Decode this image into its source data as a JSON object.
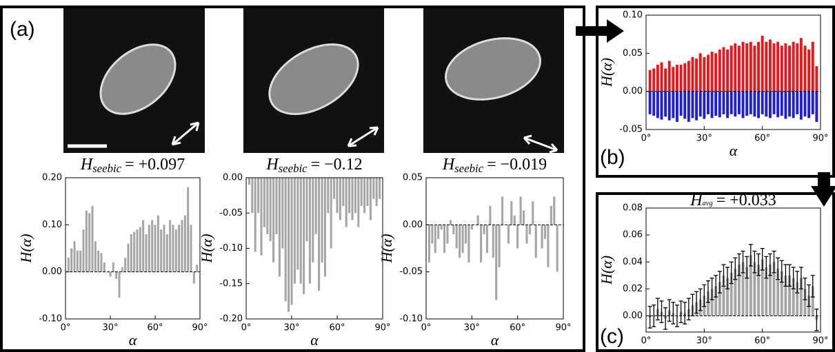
{
  "chart_data": [
    {
      "type": "bar",
      "panel_label": "(a)",
      "title_symbol": "H",
      "title_subscript": "seebic",
      "title_text": "= +0.097",
      "ylabel": "H(α)",
      "xlabel": "α",
      "x": [
        2,
        4,
        6,
        8,
        10,
        12,
        14,
        16,
        18,
        20,
        22,
        24,
        26,
        28,
        30,
        32,
        34,
        36,
        38,
        40,
        42,
        44,
        46,
        48,
        50,
        52,
        54,
        56,
        58,
        60,
        62,
        64,
        66,
        68,
        70,
        72,
        74,
        76,
        78,
        80,
        82,
        84,
        86,
        88
      ],
      "values": [
        0.03,
        0.05,
        0.065,
        0.045,
        0.045,
        0.09,
        0.13,
        0.125,
        0.14,
        0.065,
        0.045,
        0.04,
        0.02,
        0.0,
        -0.01,
        0.02,
        -0.015,
        -0.055,
        0.01,
        0.03,
        0.06,
        0.08,
        0.085,
        0.09,
        0.095,
        0.11,
        0.08,
        0.1,
        0.11,
        0.1,
        0.12,
        0.09,
        0.1,
        0.08,
        0.11,
        0.1,
        0.09,
        0.1,
        0.11,
        0.12,
        0.18,
        0.1,
        -0.025,
        0.015
      ],
      "color": "#a6a6a6",
      "xlim": [
        0,
        90
      ],
      "xticks": [
        {
          "value": 0,
          "label": "0°"
        },
        {
          "value": 30,
          "label": "30°"
        },
        {
          "value": 60,
          "label": "60°"
        },
        {
          "value": 90,
          "label": "90°"
        }
      ],
      "ylim": [
        -0.1,
        0.2
      ],
      "yticks": [
        {
          "value": -0.1,
          "label": "-0.10"
        },
        {
          "value": 0,
          "label": "0.00"
        },
        {
          "value": 0.1,
          "label": "0.10"
        },
        {
          "value": 0.2,
          "label": "0.20"
        }
      ]
    },
    {
      "type": "bar",
      "title_symbol": "H",
      "title_subscript": "seebic",
      "title_text": "= −0.12",
      "ylabel": "H(α)",
      "xlabel": "α",
      "x": [
        2,
        4,
        6,
        8,
        10,
        12,
        14,
        16,
        18,
        20,
        22,
        24,
        26,
        28,
        30,
        32,
        34,
        36,
        38,
        40,
        42,
        44,
        46,
        48,
        50,
        52,
        54,
        56,
        58,
        60,
        62,
        64,
        66,
        68,
        70,
        72,
        74,
        76,
        78,
        80,
        82,
        84,
        86,
        88
      ],
      "values": [
        -0.01,
        -0.05,
        -0.105,
        -0.05,
        -0.11,
        -0.07,
        -0.08,
        -0.09,
        -0.12,
        -0.08,
        -0.14,
        -0.1,
        -0.175,
        -0.19,
        -0.18,
        -0.15,
        -0.13,
        -0.15,
        -0.165,
        -0.09,
        -0.15,
        -0.12,
        -0.08,
        -0.16,
        -0.12,
        -0.14,
        -0.05,
        -0.1,
        -0.03,
        -0.05,
        -0.06,
        -0.04,
        -0.07,
        -0.05,
        -0.06,
        -0.05,
        -0.07,
        -0.04,
        -0.05,
        -0.04,
        -0.06,
        -0.03,
        -0.04,
        -0.03
      ],
      "color": "#a6a6a6",
      "xlim": [
        0,
        90
      ],
      "xticks": [
        {
          "value": 0,
          "label": "0°"
        },
        {
          "value": 30,
          "label": "30°"
        },
        {
          "value": 60,
          "label": "60°"
        },
        {
          "value": 90,
          "label": "90°"
        }
      ],
      "ylim": [
        -0.2,
        0
      ],
      "yticks": [
        {
          "value": -0.2,
          "label": "-0.20"
        },
        -0.15,
        {
          "value": -0.1,
          "label": "-0.10"
        },
        -0.05,
        {
          "value": 0,
          "label": "0.00"
        }
      ]
    },
    {
      "type": "bar",
      "title_symbol": "H",
      "title_subscript": "seebic",
      "title_text": "= −0.019",
      "ylabel": "H(α)",
      "xlabel": "α",
      "x": [
        2,
        4,
        6,
        8,
        10,
        12,
        14,
        16,
        18,
        20,
        22,
        24,
        26,
        28,
        30,
        32,
        34,
        36,
        38,
        40,
        42,
        44,
        46,
        48,
        50,
        52,
        54,
        56,
        58,
        60,
        62,
        64,
        66,
        68,
        70,
        72,
        74,
        76,
        78,
        80,
        82,
        84,
        86,
        88
      ],
      "values": [
        -0.04,
        -0.02,
        -0.03,
        -0.015,
        -0.005,
        -0.03,
        -0.02,
        0.005,
        -0.01,
        -0.025,
        -0.035,
        -0.03,
        -0.02,
        -0.04,
        -0.005,
        0.0,
        0.01,
        -0.04,
        -0.01,
        -0.03,
        0.02,
        -0.035,
        -0.08,
        -0.045,
        0.03,
        0.0,
        -0.02,
        0.025,
        0.01,
        -0.025,
        0.03,
        0.015,
        -0.02,
        -0.01,
        0.025,
        -0.035,
        0.0,
        -0.025,
        -0.015,
        -0.045,
        0.02,
        0.03,
        -0.05,
        0.0
      ],
      "color": "#a6a6a6",
      "xlim": [
        0,
        90
      ],
      "xticks": [
        {
          "value": 0,
          "label": "0°"
        },
        {
          "value": 30,
          "label": "30°"
        },
        {
          "value": 60,
          "label": "60°"
        },
        {
          "value": 90,
          "label": "90°"
        }
      ],
      "ylim": [
        -0.1,
        0.05
      ],
      "yticks": [
        {
          "value": -0.1,
          "label": "-0.10"
        },
        -0.05,
        {
          "value": 0,
          "label": "0.00"
        },
        0.05
      ]
    },
    {
      "type": "bar",
      "panel_label": "(b)",
      "ylabel": "H(α)",
      "xlabel": "α",
      "x": [
        2,
        4,
        6,
        8,
        10,
        12,
        14,
        16,
        18,
        20,
        22,
        24,
        26,
        28,
        30,
        32,
        34,
        36,
        38,
        40,
        42,
        44,
        46,
        48,
        50,
        52,
        54,
        56,
        58,
        60,
        62,
        64,
        66,
        68,
        70,
        72,
        74,
        76,
        78,
        80,
        82,
        84,
        86,
        88
      ],
      "series": [
        {
          "color": "#e8171c",
          "values": [
            0.028,
            0.03,
            0.035,
            0.038,
            0.03,
            0.04,
            0.032,
            0.035,
            0.035,
            0.037,
            0.04,
            0.045,
            0.043,
            0.05,
            0.045,
            0.048,
            0.052,
            0.05,
            0.055,
            0.058,
            0.055,
            0.06,
            0.063,
            0.06,
            0.065,
            0.063,
            0.065,
            0.06,
            0.065,
            0.073,
            0.065,
            0.068,
            0.063,
            0.065,
            0.06,
            0.063,
            0.06,
            0.065,
            0.063,
            0.07,
            0.06,
            0.055,
            0.065,
            0.033
          ]
        },
        {
          "color": "#1f1fd6",
          "values": [
            -0.03,
            -0.032,
            -0.035,
            -0.037,
            -0.033,
            -0.038,
            -0.035,
            -0.04,
            -0.032,
            -0.036,
            -0.04,
            -0.035,
            -0.038,
            -0.033,
            -0.036,
            -0.03,
            -0.035,
            -0.032,
            -0.034,
            -0.03,
            -0.035,
            -0.03,
            -0.033,
            -0.03,
            -0.035,
            -0.032,
            -0.03,
            -0.033,
            -0.035,
            -0.03,
            -0.033,
            -0.035,
            -0.03,
            -0.034,
            -0.032,
            -0.036,
            -0.033,
            -0.035,
            -0.03,
            -0.037,
            -0.033,
            -0.035,
            -0.03,
            -0.04
          ]
        }
      ],
      "xlim": [
        0,
        90
      ],
      "xticks": [
        {
          "value": 0,
          "label": "0°"
        },
        {
          "value": 30,
          "label": "30°"
        },
        {
          "value": 60,
          "label": "60°"
        },
        {
          "value": 90,
          "label": "90°"
        }
      ],
      "ylim": [
        -0.05,
        0.1
      ],
      "yticks": [
        -0.05,
        {
          "value": 0,
          "label": "0.00"
        },
        0.05,
        {
          "value": 0.1,
          "label": "0.10"
        }
      ]
    },
    {
      "type": "bar",
      "panel_label": "(c)",
      "title_symbol": "H",
      "title_subscript": "avg",
      "title_text": "= +0.033",
      "ylabel": "H(α)",
      "xlabel": "α",
      "x": [
        2,
        4,
        6,
        8,
        10,
        12,
        14,
        16,
        18,
        20,
        22,
        24,
        26,
        28,
        30,
        32,
        34,
        36,
        38,
        40,
        42,
        44,
        46,
        48,
        50,
        52,
        54,
        56,
        58,
        60,
        62,
        64,
        66,
        68,
        70,
        72,
        74,
        76,
        78,
        80,
        82,
        84,
        86,
        88
      ],
      "values": [
        -0.001,
        0.0,
        0.005,
        0.003,
        -0.002,
        0.004,
        0.002,
        0.0,
        0.003,
        0.002,
        0.005,
        0.008,
        0.01,
        0.012,
        0.015,
        0.018,
        0.02,
        0.022,
        0.025,
        0.03,
        0.028,
        0.032,
        0.035,
        0.038,
        0.04,
        0.036,
        0.045,
        0.04,
        0.038,
        0.042,
        0.036,
        0.038,
        0.04,
        0.035,
        0.033,
        0.03,
        0.03,
        0.028,
        0.025,
        0.028,
        0.02,
        0.015,
        0.022,
        -0.003
      ],
      "errors": [
        0.008,
        0.008,
        0.008,
        0.008,
        0.008,
        0.008,
        0.008,
        0.008,
        0.008,
        0.008,
        0.008,
        0.008,
        0.008,
        0.008,
        0.008,
        0.008,
        0.008,
        0.008,
        0.008,
        0.008,
        0.008,
        0.008,
        0.008,
        0.008,
        0.008,
        0.008,
        0.008,
        0.008,
        0.008,
        0.008,
        0.008,
        0.008,
        0.008,
        0.008,
        0.008,
        0.008,
        0.008,
        0.008,
        0.008,
        0.008,
        0.008,
        0.008,
        0.008,
        0.008
      ],
      "color": "#a6a6a6",
      "xlim": [
        0,
        90
      ],
      "xticks": [
        {
          "value": 0,
          "label": "0°"
        },
        {
          "value": 30,
          "label": "30°"
        },
        {
          "value": 60,
          "label": "60°"
        },
        {
          "value": 90,
          "label": "90°"
        }
      ],
      "ylim": [
        -0.012,
        0.08
      ],
      "yticks": [
        {
          "value": 0,
          "label": "0.00"
        },
        0.02,
        0.04,
        0.06,
        0.08
      ]
    }
  ]
}
